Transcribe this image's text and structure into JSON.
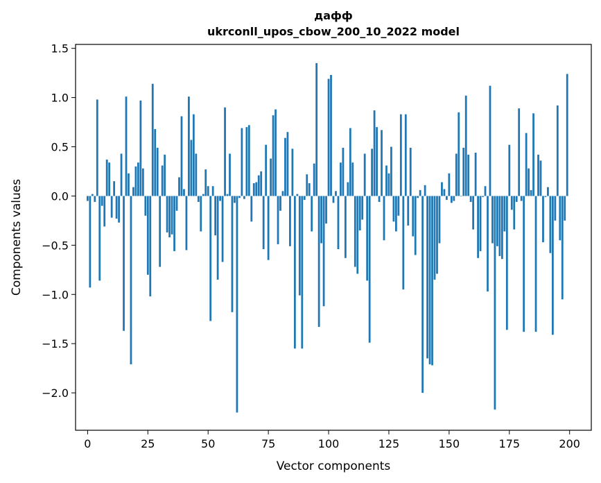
{
  "chart_data": {
    "type": "bar",
    "title_line1": "дафф",
    "title_line2": "ukrconll_upos_cbow_200_10_2022 model",
    "xlabel": "Vector components",
    "ylabel": "Components values",
    "xlim": [
      -5,
      209
    ],
    "ylim": [
      -2.38,
      1.54
    ],
    "xticks": [
      0,
      25,
      50,
      75,
      100,
      125,
      150,
      175,
      200
    ],
    "yticks": [
      -2.0,
      -1.5,
      -1.0,
      -0.5,
      0.0,
      0.5,
      1.0,
      1.5
    ],
    "ytick_labels": [
      "−2.0",
      "−1.5",
      "−1.0",
      "−0.5",
      "0.0",
      "0.5",
      "1.0",
      "1.5"
    ],
    "bar_color": "#1f77b4",
    "x": [
      0,
      1,
      2,
      3,
      4,
      5,
      6,
      7,
      8,
      9,
      10,
      11,
      12,
      13,
      14,
      15,
      16,
      17,
      18,
      19,
      20,
      21,
      22,
      23,
      24,
      25,
      26,
      27,
      28,
      29,
      30,
      31,
      32,
      33,
      34,
      35,
      36,
      37,
      38,
      39,
      40,
      41,
      42,
      43,
      44,
      45,
      46,
      47,
      48,
      49,
      50,
      51,
      52,
      53,
      54,
      55,
      56,
      57,
      58,
      59,
      60,
      61,
      62,
      63,
      64,
      65,
      66,
      67,
      68,
      69,
      70,
      71,
      72,
      73,
      74,
      75,
      76,
      77,
      78,
      79,
      80,
      81,
      82,
      83,
      84,
      85,
      86,
      87,
      88,
      89,
      90,
      91,
      92,
      93,
      94,
      95,
      96,
      97,
      98,
      99,
      100,
      101,
      102,
      103,
      104,
      105,
      106,
      107,
      108,
      109,
      110,
      111,
      112,
      113,
      114,
      115,
      116,
      117,
      118,
      119,
      120,
      121,
      122,
      123,
      124,
      125,
      126,
      127,
      128,
      129,
      130,
      131,
      132,
      133,
      134,
      135,
      136,
      137,
      138,
      139,
      140,
      141,
      142,
      143,
      144,
      145,
      146,
      147,
      148,
      149,
      150,
      151,
      152,
      153,
      154,
      155,
      156,
      157,
      158,
      159,
      160,
      161,
      162,
      163,
      164,
      165,
      166,
      167,
      168,
      169,
      170,
      171,
      172,
      173,
      174,
      175,
      176,
      177,
      178,
      179,
      180,
      181,
      182,
      183,
      184,
      185,
      186,
      187,
      188,
      189,
      190,
      191,
      192,
      193,
      194,
      195,
      196,
      197,
      198,
      199
    ],
    "values": [
      -0.05,
      -0.93,
      0.02,
      -0.06,
      0.98,
      -0.86,
      -0.1,
      -0.31,
      0.37,
      0.34,
      -0.22,
      0.15,
      -0.23,
      -0.27,
      0.43,
      -1.37,
      1.01,
      0.23,
      -1.71,
      0.09,
      0.3,
      0.34,
      0.97,
      0.28,
      -0.2,
      -0.8,
      -1.02,
      1.14,
      0.68,
      0.49,
      -0.72,
      0.31,
      0.42,
      -0.37,
      -0.42,
      -0.39,
      -0.56,
      -0.15,
      0.19,
      0.81,
      0.07,
      -0.55,
      1.01,
      0.57,
      0.83,
      0.43,
      -0.06,
      -0.36,
      0.02,
      0.27,
      0.1,
      -1.27,
      0.1,
      -0.4,
      -0.85,
      -0.05,
      -0.67,
      0.9,
      0.02,
      0.43,
      -1.18,
      -0.07,
      -2.2,
      -0.02,
      0.69,
      -0.03,
      0.7,
      0.72,
      -0.26,
      0.13,
      0.14,
      0.21,
      0.25,
      -0.54,
      0.52,
      -0.65,
      0.38,
      0.82,
      0.88,
      -0.49,
      -0.15,
      0.05,
      0.59,
      0.65,
      -0.51,
      0.48,
      -1.55,
      0.02,
      -1.01,
      -1.55,
      -0.04,
      0.22,
      0.13,
      -0.36,
      0.33,
      1.35,
      -1.33,
      -0.48,
      -1.12,
      -0.28,
      1.19,
      1.23,
      -0.07,
      0.05,
      -0.54,
      0.34,
      0.49,
      -0.63,
      0.14,
      0.69,
      0.34,
      -0.72,
      -0.79,
      -0.35,
      -0.24,
      0.43,
      -0.86,
      -1.49,
      0.48,
      0.87,
      0.7,
      -0.06,
      0.67,
      -0.45,
      0.31,
      0.23,
      0.5,
      -0.26,
      -0.36,
      -0.2,
      0.83,
      -0.95,
      0.83,
      -0.3,
      0.49,
      -0.41,
      -0.6,
      -0.02,
      0.06,
      -2.0,
      0.11,
      -1.65,
      -1.71,
      -1.72,
      -0.85,
      -0.79,
      -0.48,
      0.14,
      0.07,
      -0.04,
      0.23,
      -0.07,
      -0.05,
      0.43,
      0.85,
      0.0,
      0.49,
      1.02,
      0.42,
      -0.06,
      -0.34,
      0.44,
      -0.63,
      -0.56,
      -0.01,
      0.1,
      -0.97,
      1.12,
      -0.48,
      -2.17,
      -0.51,
      -0.61,
      -0.64,
      -0.36,
      -1.36,
      0.52,
      -0.14,
      -0.34,
      -0.06,
      0.89,
      -0.05,
      -1.38,
      0.64,
      0.28,
      0.06,
      0.84,
      -1.38,
      0.42,
      0.36,
      -0.47,
      -0.01,
      0.09,
      -0.58,
      -1.41,
      -0.25,
      0.92,
      -0.45,
      -1.05,
      -0.25,
      1.24
    ]
  }
}
